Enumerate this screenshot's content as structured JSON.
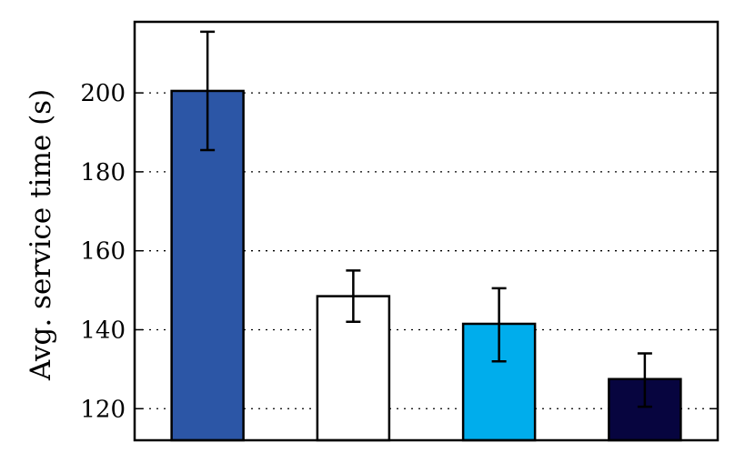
{
  "chart_data": {
    "type": "bar",
    "title": "",
    "xlabel": "",
    "ylabel": "Avg. service time (s)",
    "ylim": [
      112,
      218
    ],
    "yticks": [
      120,
      140,
      160,
      180,
      200
    ],
    "grid": "horizontal-dotted",
    "categories": [
      "",
      "",
      "",
      ""
    ],
    "values": [
      200.5,
      148.5,
      141.5,
      127.5
    ],
    "errors": [
      {
        "low": 185.5,
        "high": 215.5
      },
      {
        "low": 142.0,
        "high": 155.0
      },
      {
        "low": 132.0,
        "high": 150.5
      },
      {
        "low": 120.5,
        "high": 134.0
      }
    ],
    "colors": [
      "#2c56a6",
      "#ffffff",
      "#00adec",
      "#07053f"
    ]
  }
}
